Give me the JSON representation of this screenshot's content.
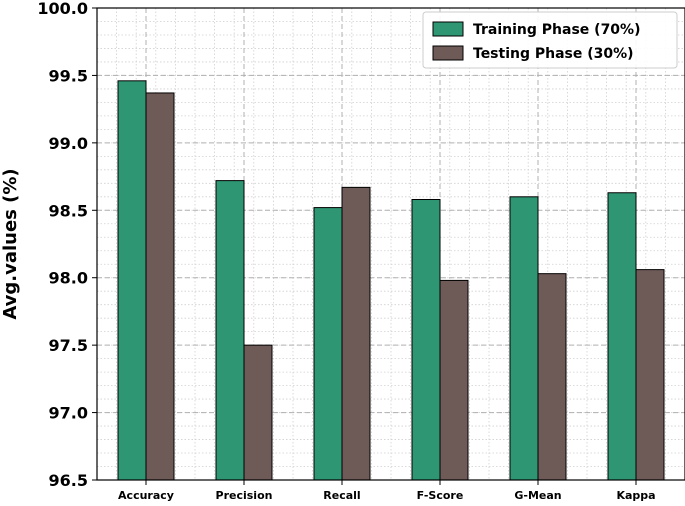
{
  "chart_data": {
    "type": "bar",
    "categories": [
      "Accuracy",
      "Precision",
      "Recall",
      "F-Score",
      "G-Mean",
      "Kappa"
    ],
    "series": [
      {
        "name": "Training Phase (70%)",
        "color": "#2e9673",
        "values": [
          99.46,
          98.72,
          98.52,
          98.58,
          98.6,
          98.63
        ]
      },
      {
        "name": "Testing Phase (30%)",
        "color": "#6e5a57",
        "values": [
          99.37,
          97.5,
          98.67,
          97.98,
          98.03,
          98.06
        ]
      }
    ],
    "title": "",
    "xlabel": "",
    "ylabel": "Avg.values (%)",
    "ylim": [
      96.5,
      100.0
    ],
    "yticks": [
      "96.5",
      "97.0",
      "97.5",
      "98.0",
      "98.5",
      "99.0",
      "99.5",
      "100.0"
    ],
    "grid": "major dashed, minor dotted",
    "legend_position": "top-right"
  }
}
